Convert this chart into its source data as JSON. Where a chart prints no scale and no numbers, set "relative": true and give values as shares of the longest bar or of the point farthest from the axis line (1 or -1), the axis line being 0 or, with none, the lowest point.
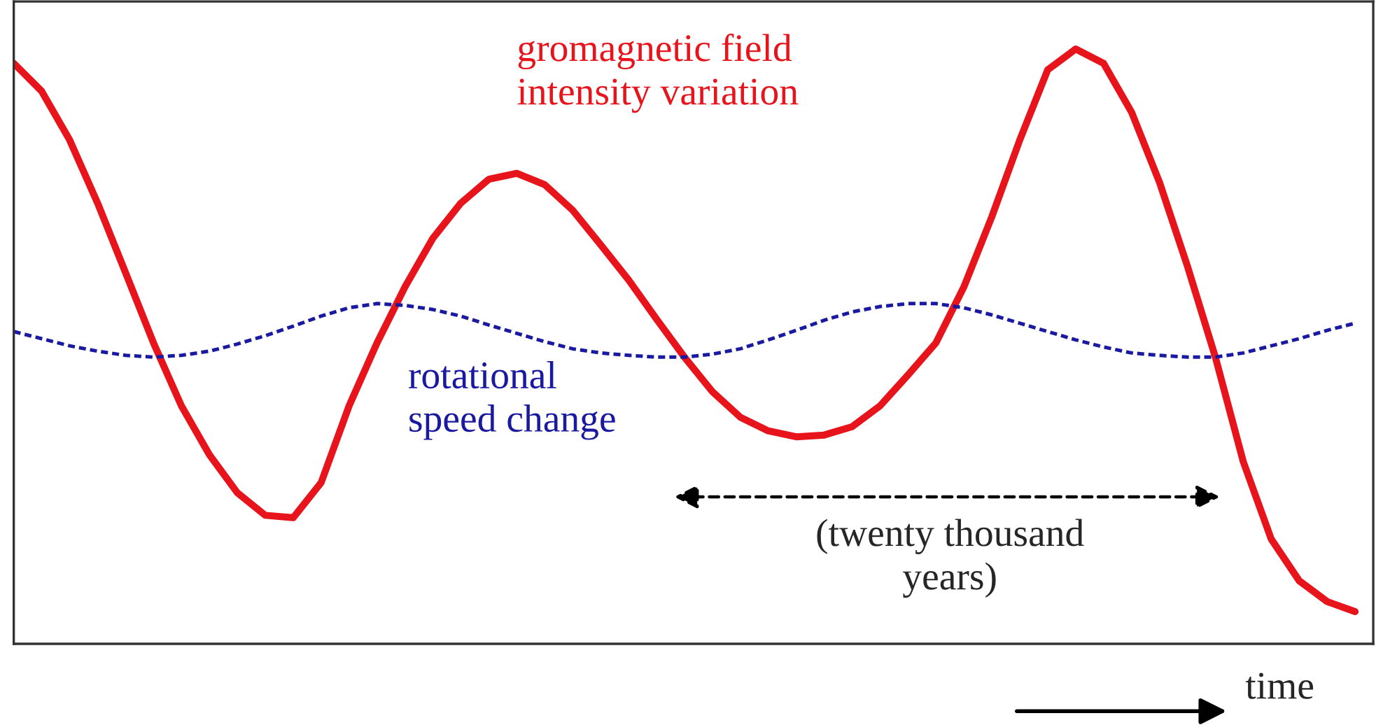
{
  "chart_data": {
    "type": "line",
    "relative": true,
    "categories": [
      null,
      null,
      null,
      null,
      null,
      null,
      null,
      null,
      null,
      null,
      null,
      null,
      null,
      null,
      null,
      null,
      null,
      null,
      null,
      null,
      null,
      null,
      null,
      null,
      null,
      null,
      null,
      null,
      null,
      null,
      null,
      null,
      null,
      null,
      null,
      null,
      null,
      null,
      null,
      null,
      null,
      null,
      null,
      null,
      null,
      null,
      null,
      null,
      null
    ],
    "series": [
      {
        "name": "gromagnetic field\nintensity variation",
        "color": "#e8141c",
        "line_style": "solid",
        "values": [
          0.976,
          0.929,
          0.847,
          0.741,
          0.624,
          0.506,
          0.4,
          0.318,
          0.254,
          0.216,
          0.212,
          0.271,
          0.4,
          0.506,
          0.6,
          0.682,
          0.741,
          0.781,
          0.791,
          0.772,
          0.729,
          0.671,
          0.612,
          0.546,
          0.482,
          0.424,
          0.381,
          0.358,
          0.348,
          0.351,
          0.365,
          0.4,
          0.452,
          0.506,
          0.6,
          0.718,
          0.847,
          0.965,
          1.0,
          0.976,
          0.894,
          0.776,
          0.635,
          0.482,
          0.306,
          0.176,
          0.106,
          0.071,
          0.054
        ]
      },
      {
        "name": "rotational\nspeed change",
        "color": "#1a1aa0",
        "line_style": "dotted",
        "values": [
          0.525,
          0.513,
          0.501,
          0.492,
          0.485,
          0.482,
          0.485,
          0.492,
          0.504,
          0.518,
          0.534,
          0.551,
          0.565,
          0.572,
          0.569,
          0.562,
          0.551,
          0.536,
          0.522,
          0.508,
          0.496,
          0.489,
          0.485,
          0.482,
          0.482,
          0.487,
          0.496,
          0.511,
          0.527,
          0.544,
          0.558,
          0.567,
          0.572,
          0.572,
          0.565,
          0.553,
          0.539,
          0.525,
          0.511,
          0.499,
          0.489,
          0.485,
          0.482,
          0.482,
          0.489,
          0.501,
          0.513,
          0.527,
          0.539
        ]
      }
    ],
    "annotations": [
      "(twenty thousand\nyears)",
      "time"
    ],
    "grid": false,
    "legend": false
  }
}
